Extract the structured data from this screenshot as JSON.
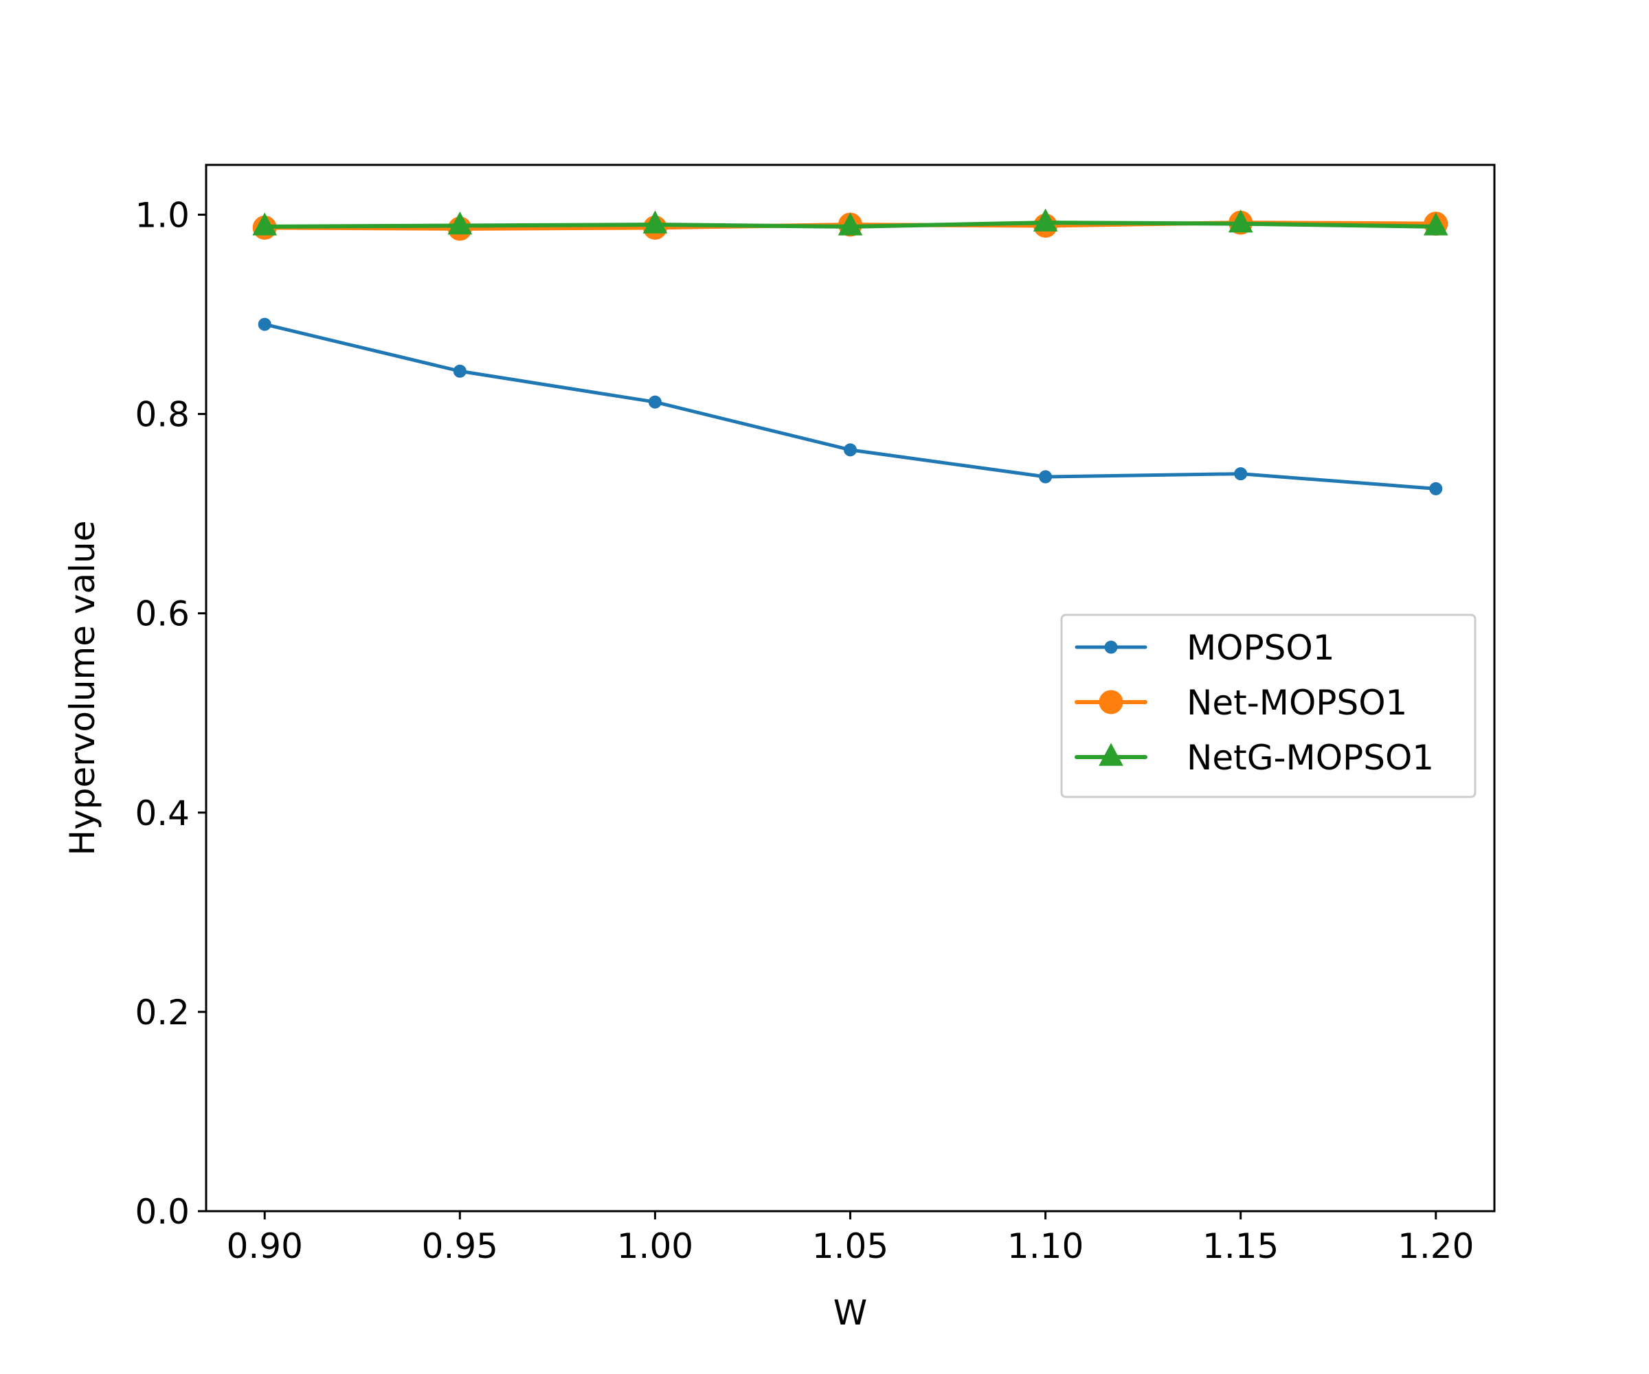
{
  "chart_data": {
    "type": "line",
    "title": "",
    "xlabel": "W",
    "ylabel": "Hypervolume value",
    "x": [
      0.9,
      0.95,
      1.0,
      1.05,
      1.1,
      1.15,
      1.2
    ],
    "x_tick_labels": [
      "0.90",
      "0.95",
      "1.00",
      "1.05",
      "1.10",
      "1.15",
      "1.20"
    ],
    "y_tick_values": [
      0.0,
      0.2,
      0.4,
      0.6,
      0.8,
      1.0
    ],
    "y_tick_labels": [
      "0.0",
      "0.2",
      "0.4",
      "0.6",
      "0.8",
      "1.0"
    ],
    "xlim": [
      0.885,
      1.215
    ],
    "ylim": [
      0.0,
      1.05
    ],
    "grid": false,
    "legend_position": "center-right",
    "series": [
      {
        "name": "MOPSO1",
        "color": "#1f77b4",
        "marker": "small-circle",
        "values": [
          0.89,
          0.843,
          0.812,
          0.764,
          0.737,
          0.74,
          0.725
        ]
      },
      {
        "name": "Net-MOPSO1",
        "color": "#ff7f0e",
        "marker": "circle",
        "values": [
          0.987,
          0.986,
          0.987,
          0.99,
          0.989,
          0.992,
          0.991
        ]
      },
      {
        "name": "NetG-MOPSO1",
        "color": "#2ca02c",
        "marker": "triangle",
        "values": [
          0.988,
          0.989,
          0.99,
          0.988,
          0.992,
          0.991,
          0.988
        ]
      }
    ]
  }
}
